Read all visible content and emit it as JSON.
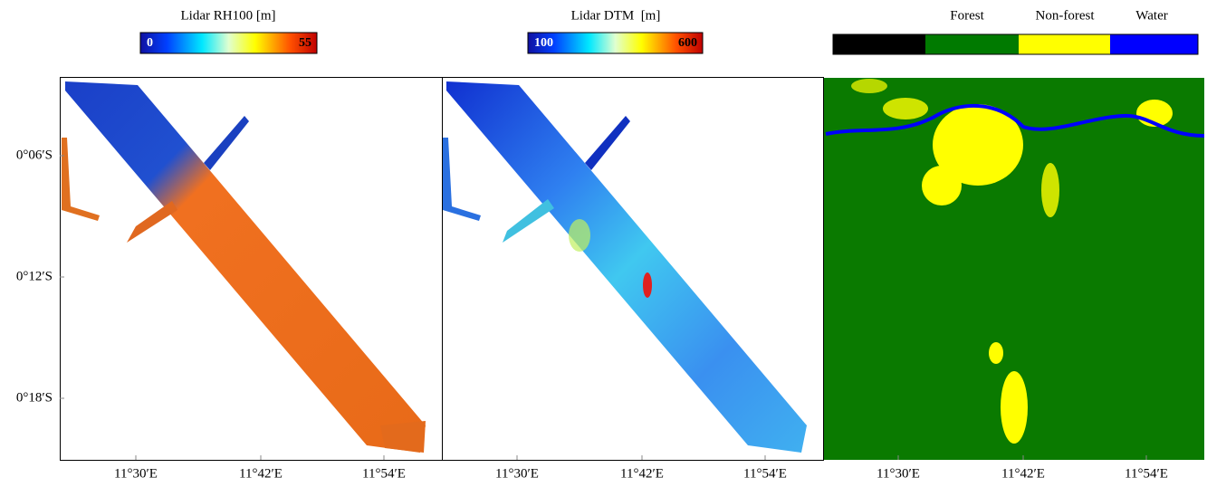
{
  "panels": [
    {
      "colorbar": {
        "title": "Lidar RH100 [m]",
        "min": 0,
        "max": 55
      },
      "x_ticks": [
        "11°30′E",
        "11°42′E",
        "11°54′E"
      ]
    },
    {
      "colorbar": {
        "title": "Lidar DTM  [m]",
        "min": 100,
        "max": 600
      },
      "x_ticks": [
        "11°30′E",
        "11°42′E",
        "11°54′E"
      ]
    },
    {
      "legend": [
        "Forest",
        "Non-forest",
        "Water"
      ],
      "x_ticks": [
        "11°30′E",
        "11°42′E",
        "11°54′E"
      ]
    }
  ],
  "y_ticks": [
    "0°06′S",
    "0°12′S",
    "0°18′S"
  ]
}
